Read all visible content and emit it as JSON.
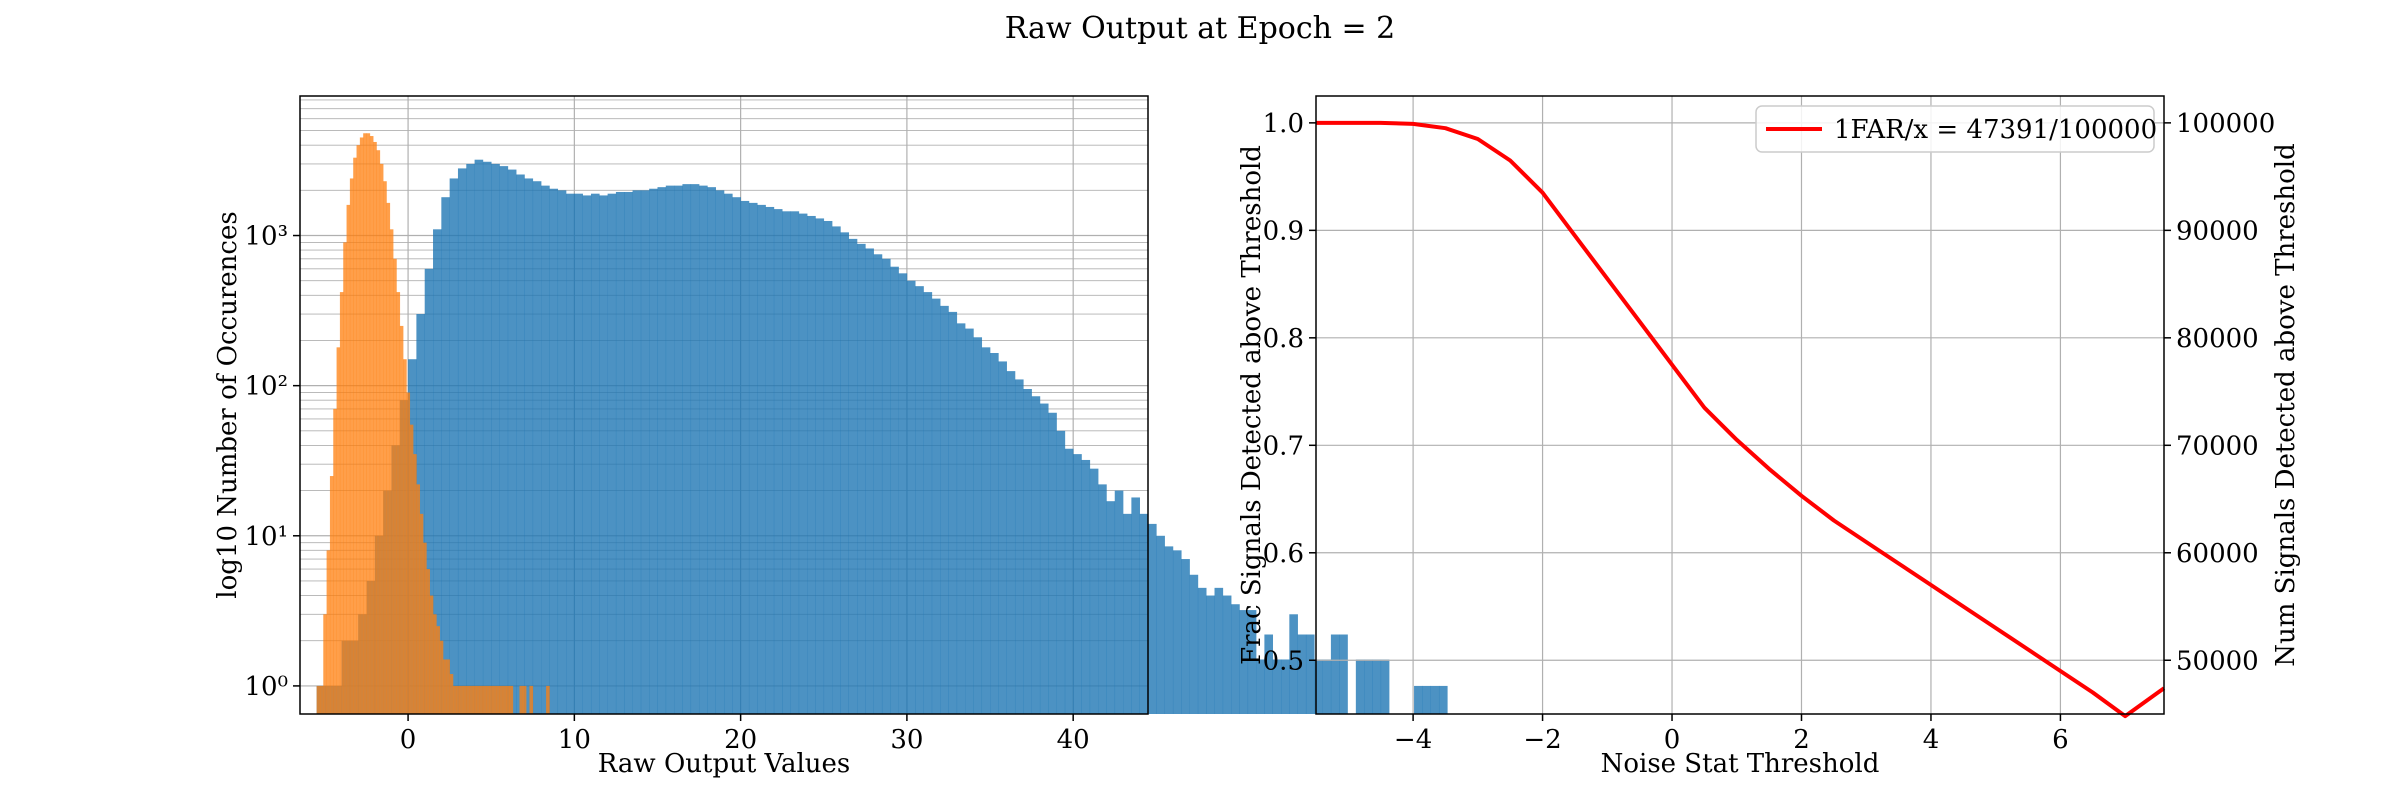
{
  "figure": {
    "title": "Raw Output at Epoch = 2"
  },
  "chart_data": [
    {
      "type": "histogram",
      "xlabel": "Raw Output Values",
      "ylabel": "log10 Number of Occurences",
      "xlim": [
        -6.5,
        44.5
      ],
      "ylim": [
        0.65,
        8500
      ],
      "yscale": "log",
      "xticks": [
        0,
        10,
        20,
        30,
        40
      ],
      "yticks": [
        {
          "value": 1,
          "label": "10⁰"
        },
        {
          "value": 10,
          "label": "10¹"
        },
        {
          "value": 100,
          "label": "10²"
        },
        {
          "value": 1000,
          "label": "10³"
        }
      ],
      "grid": true,
      "series": [
        {
          "color": "#1f77b4",
          "bin_start": -5.5,
          "bin_width": 0.5,
          "counts": [
            1,
            1,
            1,
            2,
            2,
            3,
            5,
            10,
            20,
            40,
            80,
            150,
            300,
            600,
            1100,
            1800,
            2400,
            2800,
            3000,
            3200,
            3100,
            3000,
            2900,
            2750,
            2550,
            2400,
            2300,
            2150,
            2050,
            2000,
            1900,
            1900,
            1850,
            1900,
            1850,
            1900,
            1950,
            1950,
            2000,
            2000,
            2050,
            2100,
            2150,
            2150,
            2200,
            2200,
            2150,
            2100,
            2000,
            1900,
            1800,
            1700,
            1650,
            1600,
            1550,
            1500,
            1450,
            1450,
            1400,
            1350,
            1300,
            1250,
            1150,
            1050,
            950,
            880,
            820,
            750,
            700,
            620,
            560,
            500,
            460,
            420,
            380,
            340,
            310,
            260,
            240,
            210,
            180,
            165,
            145,
            125,
            110,
            95,
            85,
            76,
            66,
            50,
            38,
            35,
            32,
            28,
            22,
            17,
            20,
            14,
            18,
            14,
            12,
            10,
            8.5,
            8,
            7,
            5.5,
            4.5,
            4,
            4.5,
            4,
            3.5,
            3.2,
            3.2,
            1.5,
            2.2,
            1.5,
            1.5,
            3,
            2.2,
            2.2,
            1.5,
            1.5,
            2.2,
            2.2,
            0,
            1.5,
            1.5,
            1.5,
            1.5,
            0,
            0,
            0,
            1,
            1,
            1,
            1
          ]
        },
        {
          "color": "#ff7f0e",
          "bin_start": -5.5,
          "bin_width": 0.2,
          "counts": [
            1,
            1,
            3,
            8,
            25,
            70,
            180,
            420,
            900,
            1600,
            2400,
            3300,
            4000,
            4500,
            4800,
            4800,
            4600,
            4200,
            3700,
            3000,
            2300,
            1650,
            1100,
            700,
            420,
            250,
            150,
            90,
            55,
            35,
            22,
            14,
            9,
            6,
            4,
            3,
            2.5,
            2,
            1.5,
            1.5,
            1.2,
            1,
            1,
            1,
            1,
            1,
            1,
            1,
            1,
            1,
            1,
            1,
            1,
            1,
            1,
            1,
            1,
            1,
            1,
            0,
            0,
            1,
            1,
            0,
            1,
            0,
            0,
            0,
            0,
            1
          ]
        }
      ]
    },
    {
      "type": "line",
      "xlabel": "Noise Stat Threshold",
      "ylabel": "Frac Signals Detected above Threshold",
      "ylabel_right": "Num Signals Detected above Threshold",
      "xlim": [
        -5.5,
        7.6
      ],
      "ylim": [
        0.45,
        1.025
      ],
      "ylim_right": [
        45000,
        102500
      ],
      "xticks": [
        -4,
        -2,
        0,
        2,
        4,
        6
      ],
      "xtick_labels": [
        "−4",
        "−2",
        "0",
        "2",
        "4",
        "6"
      ],
      "yticks": [
        0.5,
        0.6,
        0.7,
        0.8,
        0.9,
        1.0
      ],
      "ytick_labels": [
        "0.5",
        "0.6",
        "0.7",
        "0.8",
        "0.9",
        "1.0"
      ],
      "yticks_right": [
        50000,
        60000,
        70000,
        80000,
        90000,
        100000
      ],
      "ytick_labels_right": [
        "50000",
        "60000",
        "70000",
        "80000",
        "90000",
        "100000"
      ],
      "grid": true,
      "legend": {
        "position": "top-right"
      },
      "series": [
        {
          "name": "1FAR/x = 47391/100000",
          "color": "#ff0000",
          "x": [
            -5.5,
            -5,
            -4.5,
            -4,
            -3.5,
            -3,
            -2.5,
            -2,
            -1.5,
            -1,
            -0.5,
            0,
            0.5,
            1,
            1.5,
            2,
            2.5,
            3,
            3.5,
            4,
            4.5,
            5,
            5.5,
            6,
            6.5,
            7,
            7.6
          ],
          "y": [
            1.0,
            1.0,
            1.0,
            0.999,
            0.995,
            0.985,
            0.965,
            0.935,
            0.895,
            0.855,
            0.815,
            0.775,
            0.735,
            0.705,
            0.678,
            0.653,
            0.63,
            0.61,
            0.59,
            0.57,
            0.55,
            0.53,
            0.51,
            0.49,
            0.47,
            0.448,
            0.474
          ]
        }
      ]
    }
  ]
}
